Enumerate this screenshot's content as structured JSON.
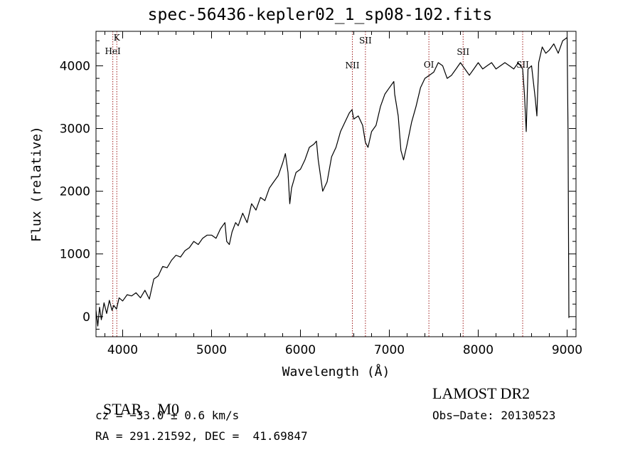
{
  "chart_data": {
    "type": "line",
    "title": "spec-56436-kepler02_1_sp08-102.fits",
    "xlabel": "Wavelength (Å)",
    "ylabel": "Flux (relative)",
    "xlim": [
      3700,
      9100
    ],
    "ylim": [
      -320,
      4550
    ],
    "x_ticks": [
      4000,
      5000,
      6000,
      7000,
      8000,
      9000
    ],
    "y_ticks": [
      0,
      1000,
      2000,
      3000,
      4000
    ],
    "grid": false,
    "series": [
      {
        "color": "#000000",
        "points": [
          [
            3700,
            100
          ],
          [
            3720,
            -150
          ],
          [
            3740,
            150
          ],
          [
            3760,
            -50
          ],
          [
            3790,
            220
          ],
          [
            3820,
            50
          ],
          [
            3850,
            260
          ],
          [
            3880,
            100
          ],
          [
            3900,
            180
          ],
          [
            3930,
            120
          ],
          [
            3960,
            300
          ],
          [
            4000,
            250
          ],
          [
            4050,
            350
          ],
          [
            4100,
            330
          ],
          [
            4150,
            380
          ],
          [
            4200,
            300
          ],
          [
            4250,
            420
          ],
          [
            4300,
            280
          ],
          [
            4350,
            600
          ],
          [
            4400,
            650
          ],
          [
            4450,
            800
          ],
          [
            4500,
            780
          ],
          [
            4550,
            900
          ],
          [
            4600,
            980
          ],
          [
            4650,
            950
          ],
          [
            4700,
            1050
          ],
          [
            4750,
            1100
          ],
          [
            4800,
            1200
          ],
          [
            4850,
            1150
          ],
          [
            4900,
            1250
          ],
          [
            4950,
            1300
          ],
          [
            5000,
            1300
          ],
          [
            5050,
            1250
          ],
          [
            5100,
            1400
          ],
          [
            5150,
            1500
          ],
          [
            5170,
            1200
          ],
          [
            5200,
            1150
          ],
          [
            5230,
            1350
          ],
          [
            5270,
            1500
          ],
          [
            5300,
            1450
          ],
          [
            5350,
            1650
          ],
          [
            5400,
            1500
          ],
          [
            5450,
            1800
          ],
          [
            5500,
            1700
          ],
          [
            5550,
            1900
          ],
          [
            5600,
            1850
          ],
          [
            5650,
            2050
          ],
          [
            5700,
            2150
          ],
          [
            5750,
            2250
          ],
          [
            5800,
            2450
          ],
          [
            5830,
            2600
          ],
          [
            5860,
            2300
          ],
          [
            5880,
            1800
          ],
          [
            5900,
            2050
          ],
          [
            5950,
            2300
          ],
          [
            6000,
            2350
          ],
          [
            6050,
            2500
          ],
          [
            6100,
            2700
          ],
          [
            6150,
            2750
          ],
          [
            6180,
            2800
          ],
          [
            6200,
            2500
          ],
          [
            6250,
            2000
          ],
          [
            6300,
            2150
          ],
          [
            6350,
            2550
          ],
          [
            6400,
            2700
          ],
          [
            6450,
            2950
          ],
          [
            6500,
            3100
          ],
          [
            6550,
            3250
          ],
          [
            6580,
            3300
          ],
          [
            6600,
            3150
          ],
          [
            6650,
            3200
          ],
          [
            6700,
            3050
          ],
          [
            6730,
            2780
          ],
          [
            6760,
            2700
          ],
          [
            6800,
            2950
          ],
          [
            6850,
            3050
          ],
          [
            6900,
            3350
          ],
          [
            6950,
            3550
          ],
          [
            7000,
            3650
          ],
          [
            7050,
            3750
          ],
          [
            7060,
            3550
          ],
          [
            7100,
            3200
          ],
          [
            7130,
            2650
          ],
          [
            7160,
            2500
          ],
          [
            7200,
            2750
          ],
          [
            7250,
            3100
          ],
          [
            7300,
            3350
          ],
          [
            7350,
            3650
          ],
          [
            7400,
            3800
          ],
          [
            7450,
            3850
          ],
          [
            7500,
            3900
          ],
          [
            7550,
            4050
          ],
          [
            7600,
            4000
          ],
          [
            7650,
            3800
          ],
          [
            7700,
            3850
          ],
          [
            7750,
            3950
          ],
          [
            7800,
            4050
          ],
          [
            7850,
            3950
          ],
          [
            7900,
            3850
          ],
          [
            7950,
            3950
          ],
          [
            8000,
            4050
          ],
          [
            8050,
            3950
          ],
          [
            8100,
            4000
          ],
          [
            8150,
            4050
          ],
          [
            8200,
            3950
          ],
          [
            8250,
            4000
          ],
          [
            8300,
            4050
          ],
          [
            8350,
            4000
          ],
          [
            8400,
            3950
          ],
          [
            8450,
            4050
          ],
          [
            8500,
            3950
          ],
          [
            8520,
            3550
          ],
          [
            8540,
            2950
          ],
          [
            8560,
            3950
          ],
          [
            8600,
            4000
          ],
          [
            8640,
            3500
          ],
          [
            8660,
            3200
          ],
          [
            8680,
            4050
          ],
          [
            8720,
            4300
          ],
          [
            8760,
            4200
          ],
          [
            8800,
            4250
          ],
          [
            8850,
            4350
          ],
          [
            8900,
            4200
          ],
          [
            8950,
            4400
          ],
          [
            9000,
            4450
          ],
          [
            9010,
            2950
          ],
          [
            9020,
            -20
          ]
        ]
      }
    ],
    "lines": [
      {
        "label": "K",
        "x": 3934
      },
      {
        "label": "HeI",
        "x": 3889
      },
      {
        "label": "NII",
        "x": 6584
      },
      {
        "label": "SII",
        "x": 6731
      },
      {
        "label": "OI",
        "x": 7445
      },
      {
        "label": "SII",
        "x": 7830
      },
      {
        "label": "SII",
        "x": 8500
      }
    ]
  },
  "info": {
    "object_class": "STAR",
    "subclass": "M0",
    "redshift_text": "cz = −33.0 ± 0.6 km/s",
    "coords_text": "RA = 291.21592, DEC =  41.69847",
    "survey": "LAMOST DR2",
    "obs_date_text": "Obs−Date: 20130523"
  }
}
